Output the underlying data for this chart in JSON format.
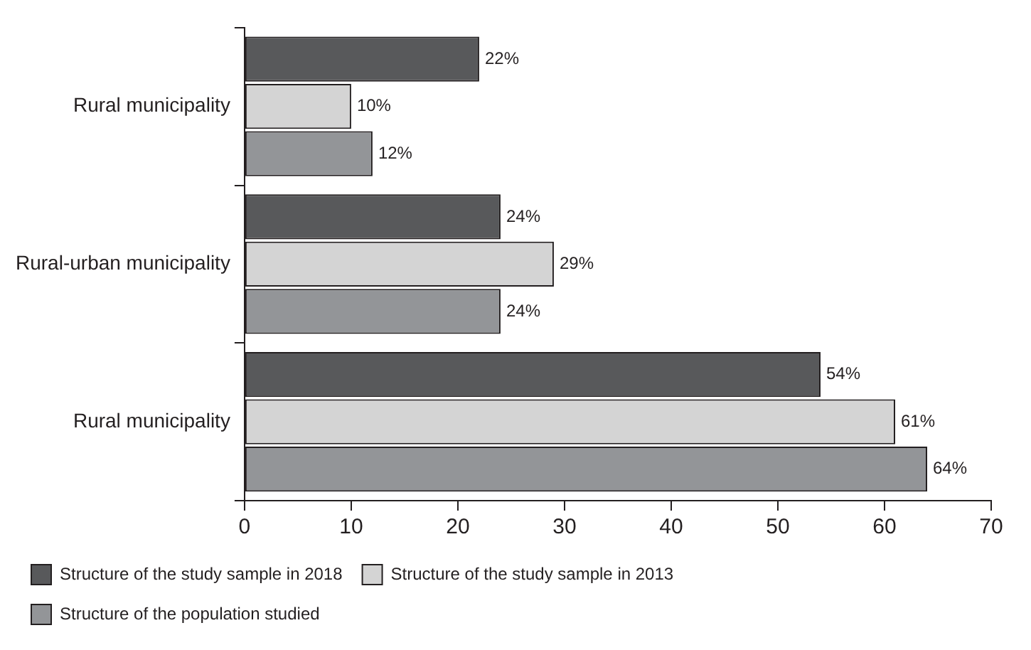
{
  "chart_data": {
    "type": "bar",
    "orientation": "horizontal",
    "categories": [
      "Rural municipality",
      "Rural-urban municipality",
      "Rural municipality"
    ],
    "series": [
      {
        "name": "Structure of the study sample in 2018",
        "color": "#58595b",
        "values": [
          22,
          24,
          54
        ],
        "value_labels": [
          "22%",
          "24%",
          "54%"
        ]
      },
      {
        "name": "Structure of the study sample in 2013",
        "color": "#d4d4d4",
        "values": [
          10,
          29,
          61
        ],
        "value_labels": [
          "10%",
          "29%",
          "61%"
        ]
      },
      {
        "name": "Structure of the population studied",
        "color": "#939598",
        "values": [
          12,
          24,
          64
        ],
        "value_labels": [
          "12%",
          "24%",
          "64%"
        ]
      }
    ],
    "xlim": [
      0,
      70
    ],
    "xticks": [
      0,
      10,
      20,
      30,
      40,
      50,
      60,
      70
    ],
    "grid": false,
    "legend": "bottom"
  }
}
